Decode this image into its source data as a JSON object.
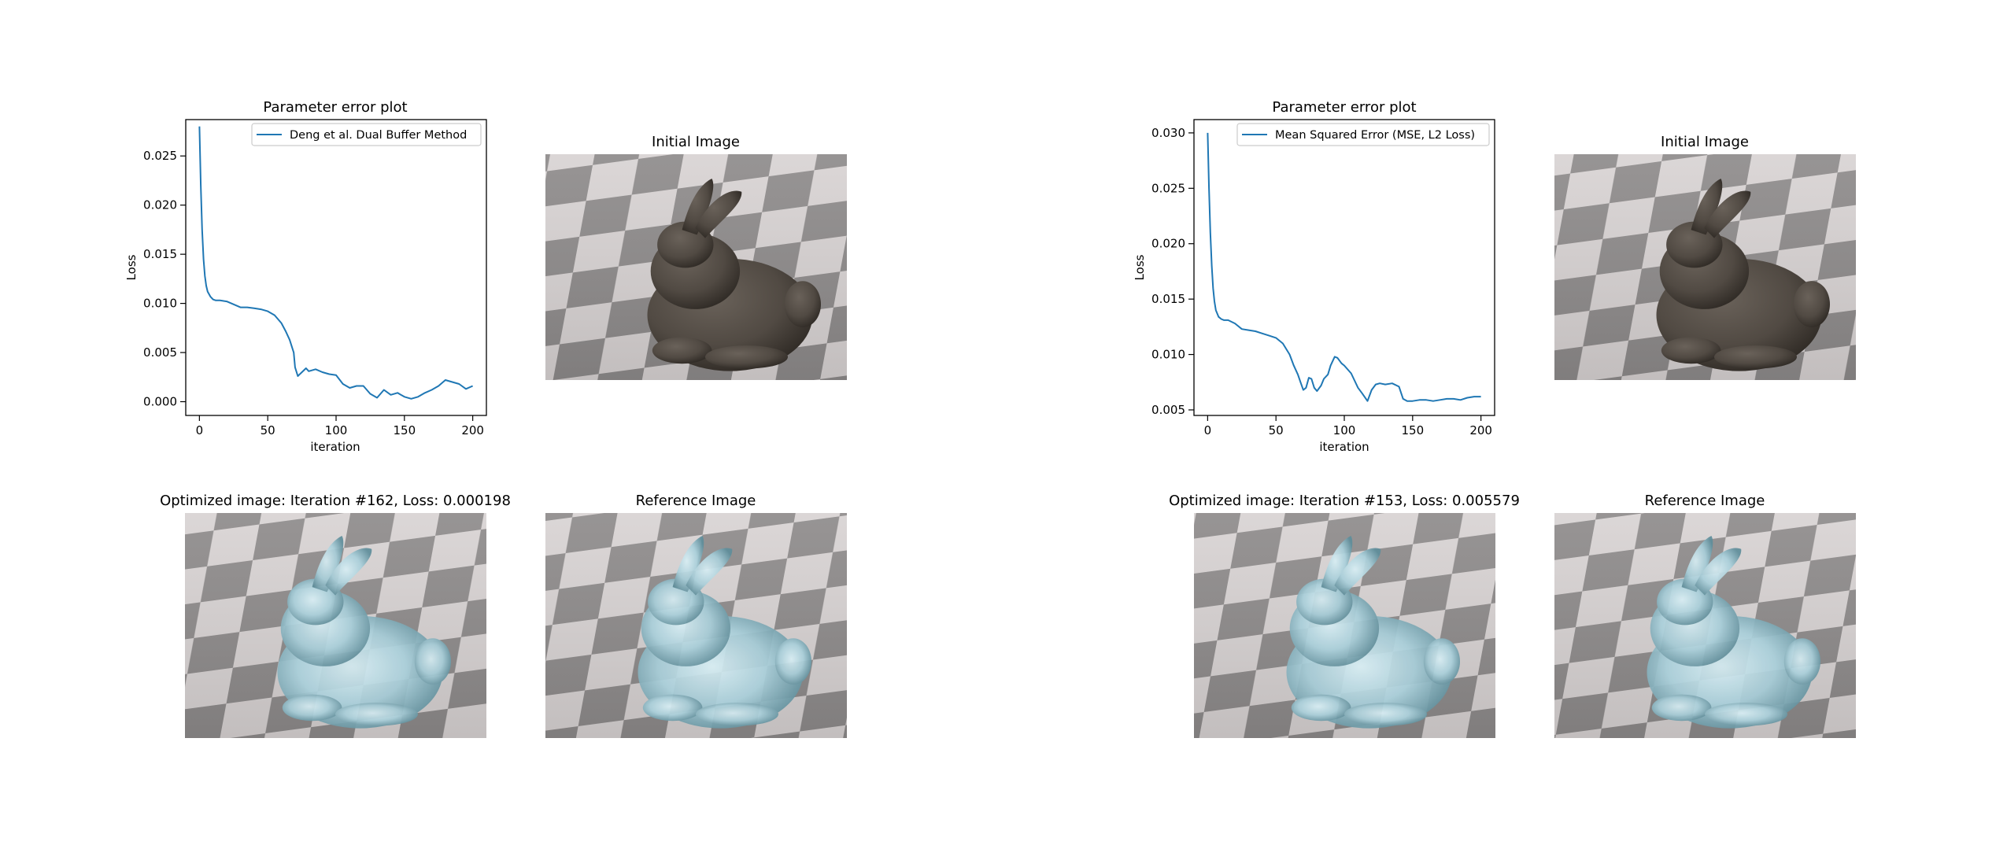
{
  "figure_left": {
    "plot": {
      "title": "Parameter error plot",
      "xlabel": "iteration",
      "ylabel": "Loss",
      "legend": "Deng et al. Dual Buffer Method"
    },
    "initial_title": "Initial Image",
    "optimized_title": "Optimized image: Iteration #162, Loss: 0.000198",
    "reference_title": "Reference Image"
  },
  "figure_right": {
    "plot": {
      "title": "Parameter error plot",
      "xlabel": "iteration",
      "ylabel": "Loss",
      "legend": "Mean Squared Error (MSE, L2 Loss)"
    },
    "initial_title": "Initial Image",
    "optimized_title": "Optimized image: Iteration #153, Loss: 0.005579",
    "reference_title": "Reference Image"
  },
  "colors": {
    "line": "#1f77b4",
    "bunny_initial": "#514a43",
    "bunny_glass": "#a9cfda",
    "checker_light": "#d8d3d3",
    "checker_dark": "#8e8b8b"
  },
  "chart_data": [
    {
      "type": "line",
      "title": "Parameter error plot",
      "xlabel": "iteration",
      "ylabel": "Loss",
      "legend_position": "top-right",
      "grid": false,
      "xlim": [
        -10,
        210
      ],
      "ylim": [
        -0.0014,
        0.0287
      ],
      "xticks": [
        0,
        50,
        100,
        150,
        200
      ],
      "xtick_labels": [
        "0",
        "50",
        "100",
        "150",
        "200"
      ],
      "yticks": [
        0,
        0.005,
        0.01,
        0.015,
        0.02,
        0.025
      ],
      "ytick_labels": [
        "0.000",
        "0.005",
        "0.010",
        "0.015",
        "0.020",
        "0.025"
      ],
      "series": [
        {
          "name": "Deng et al. Dual Buffer Method",
          "x": [
            0,
            1,
            2,
            3,
            4,
            5,
            6,
            8,
            10,
            12,
            15,
            20,
            25,
            30,
            35,
            40,
            45,
            50,
            55,
            60,
            63,
            66,
            69,
            70,
            72,
            75,
            78,
            80,
            85,
            90,
            95,
            100,
            105,
            110,
            115,
            120,
            125,
            130,
            135,
            140,
            145,
            150,
            155,
            160,
            165,
            170,
            175,
            180,
            185,
            190,
            195,
            200
          ],
          "y": [
            0.028,
            0.022,
            0.0175,
            0.0145,
            0.0128,
            0.0118,
            0.0112,
            0.0107,
            0.0104,
            0.0103,
            0.0103,
            0.0102,
            0.0099,
            0.0096,
            0.0096,
            0.0095,
            0.0094,
            0.0092,
            0.0088,
            0.008,
            0.0072,
            0.0063,
            0.005,
            0.0035,
            0.0026,
            0.003,
            0.0034,
            0.0031,
            0.0033,
            0.003,
            0.0028,
            0.0027,
            0.0018,
            0.0014,
            0.0016,
            0.0016,
            0.0008,
            0.0004,
            0.0012,
            0.0007,
            0.0009,
            0.0005,
            0.0003,
            0.0005,
            0.0009,
            0.0012,
            0.0016,
            0.0022,
            0.002,
            0.0018,
            0.0013,
            0.0016
          ]
        }
      ]
    },
    {
      "type": "line",
      "title": "Parameter error plot",
      "xlabel": "iteration",
      "ylabel": "Loss",
      "legend_position": "top-right",
      "grid": false,
      "xlim": [
        -10,
        210
      ],
      "ylim": [
        0.0045,
        0.0312
      ],
      "xticks": [
        0,
        50,
        100,
        150,
        200
      ],
      "xtick_labels": [
        "0",
        "50",
        "100",
        "150",
        "200"
      ],
      "yticks": [
        0.005,
        0.01,
        0.015,
        0.02,
        0.025,
        0.03
      ],
      "ytick_labels": [
        "0.005",
        "0.010",
        "0.015",
        "0.020",
        "0.025",
        "0.030"
      ],
      "series": [
        {
          "name": "Mean Squared Error (MSE, L2 Loss)",
          "x": [
            0,
            1,
            2,
            3,
            4,
            5,
            6,
            8,
            10,
            12,
            15,
            20,
            25,
            30,
            35,
            40,
            45,
            50,
            55,
            60,
            63,
            66,
            68,
            70,
            72,
            74,
            76,
            78,
            80,
            83,
            85,
            88,
            90,
            93,
            95,
            98,
            100,
            105,
            110,
            113,
            117,
            120,
            123,
            126,
            130,
            135,
            140,
            143,
            146,
            150,
            155,
            160,
            165,
            170,
            175,
            180,
            185,
            190,
            195,
            200
          ],
          "y": [
            0.03,
            0.025,
            0.021,
            0.018,
            0.016,
            0.0148,
            0.014,
            0.0134,
            0.0132,
            0.0131,
            0.0131,
            0.0128,
            0.0123,
            0.0122,
            0.0121,
            0.0119,
            0.0117,
            0.0115,
            0.011,
            0.01,
            0.009,
            0.0082,
            0.0075,
            0.0068,
            0.007,
            0.0079,
            0.0078,
            0.007,
            0.0067,
            0.0072,
            0.0078,
            0.0082,
            0.009,
            0.0098,
            0.0097,
            0.0092,
            0.009,
            0.0083,
            0.007,
            0.0065,
            0.0058,
            0.0068,
            0.0073,
            0.0074,
            0.0073,
            0.0074,
            0.0071,
            0.006,
            0.0058,
            0.0058,
            0.0059,
            0.0059,
            0.0058,
            0.0059,
            0.006,
            0.006,
            0.0059,
            0.0061,
            0.0062,
            0.0062
          ]
        }
      ]
    }
  ]
}
